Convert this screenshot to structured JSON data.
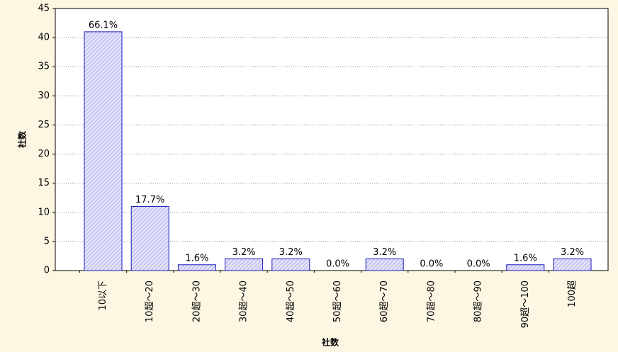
{
  "chart_data": {
    "type": "bar",
    "xlabel": "社数",
    "ylabel": "社数",
    "categories": [
      "10以下",
      "10超～20",
      "20超～30",
      "30超～40",
      "40超～50",
      "50超～60",
      "60超～70",
      "70超～80",
      "80超～90",
      "90超～100",
      "100超"
    ],
    "values": [
      41,
      11,
      1,
      2,
      2,
      0,
      2,
      0,
      0,
      1,
      2
    ],
    "value_labels": [
      "66.1%",
      "17.7%",
      "1.6%",
      "3.2%",
      "3.2%",
      "0.0%",
      "3.2%",
      "0.0%",
      "0.0%",
      "1.6%",
      "3.2%"
    ],
    "color": "#c8c8f4",
    "edgecolor": "#1a1ab8",
    "ylim": [
      0,
      45
    ],
    "yticks": [
      0,
      5,
      10,
      15,
      20,
      25,
      30,
      35,
      40,
      45
    ],
    "grid": true
  }
}
